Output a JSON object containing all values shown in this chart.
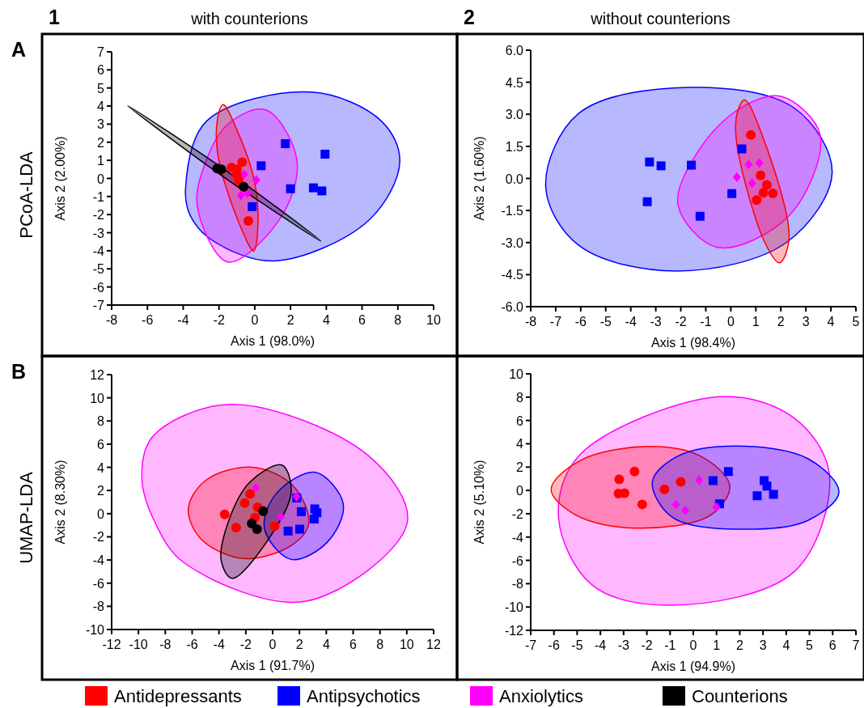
{
  "chart_data": [
    {
      "type": "scatter",
      "title": "with counterions",
      "xlabel": "Axis 1 (98.0%)",
      "ylabel": "Axis 2 (2.00%)",
      "annotations": [
        "1",
        "A",
        "PCoA-LDA"
      ],
      "xlim": [
        -8,
        10
      ],
      "xticks": [
        -8,
        -6,
        -4,
        -2,
        0,
        2,
        4,
        6,
        8,
        10
      ],
      "ylim": [
        -7,
        7
      ],
      "yticks": [
        -7,
        -6,
        -5,
        -4,
        -3,
        -2,
        -1,
        0,
        1,
        2,
        3,
        4,
        5,
        6,
        7
      ],
      "series": [
        {
          "type": "area",
          "color": "#0000ff",
          "x": [
            -3.87,
            -2.7,
            3.17,
            7.09,
            8.11,
            6.34,
            1.07,
            -2.4,
            -3.6
          ],
          "values": [
            -0.57,
            3.16,
            4.77,
            3.16,
            0.92,
            -2.35,
            -4.56,
            -3.4,
            -2.06
          ]
        },
        {
          "type": "area",
          "color": "#ff00ff",
          "x": [
            0.61,
            2.35,
            1.52,
            -1.49,
            -3.2,
            -2.85,
            -1.49
          ],
          "values": [
            3.79,
            1.07,
            -2.06,
            -4.62,
            -1.61,
            0.63,
            3.01
          ]
        },
        {
          "type": "area",
          "color": "#ff0000",
          "x": [
            -1.77,
            -1.01,
            0.01,
            0.16,
            -0.06,
            -0.74,
            -2.02,
            -2.1
          ],
          "values": [
            4.08,
            2.71,
            -0.27,
            -2.95,
            -4.02,
            -2.8,
            1.07,
            3.16
          ]
        },
        {
          "type": "area",
          "color": "#000000",
          "x": [
            -7.1,
            -4.33,
            -1.6,
            1.08,
            3.7,
            0.93,
            -1.81,
            -4.48
          ],
          "values": [
            4.02,
            2.25,
            0.43,
            -1.49,
            -3.47,
            -1.7,
            0.13,
            2.04
          ]
        },
        {
          "type": "scatter",
          "marker": "square",
          "color": "#0000ff",
          "x": [
            1.71,
            3.93,
            0.36,
            2.0,
            3.28,
            3.75,
            -0.14
          ],
          "values": [
            1.92,
            1.34,
            0.7,
            -0.57,
            -0.52,
            -0.69,
            -1.56
          ]
        },
        {
          "type": "scatter",
          "marker": "diamond",
          "color": "#ff00ff",
          "x": [
            -0.59,
            0.09,
            -0.77,
            -0.41
          ],
          "values": [
            0.22,
            -0.09,
            -0.94,
            -0.82
          ]
        },
        {
          "type": "scatter",
          "marker": "circle",
          "color": "#ff0000",
          "x": [
            -0.7,
            -1.3,
            -1.0,
            -1.0,
            -0.9,
            -0.36
          ],
          "values": [
            0.9,
            0.6,
            0.5,
            0.2,
            -0.1,
            -2.35
          ]
        },
        {
          "type": "scatter",
          "marker": "circle",
          "color": "#000000",
          "x": [
            -2.1,
            -1.87,
            -0.62
          ],
          "values": [
            0.55,
            0.5,
            -0.46
          ]
        }
      ]
    },
    {
      "type": "scatter",
      "title": "without counterions",
      "xlabel": "Axis 1 (98.4%)",
      "ylabel": "Axis 2 (1.60%)",
      "annotations": [
        "2"
      ],
      "xlim": [
        -8,
        5
      ],
      "xticks": [
        -8,
        -7,
        -6,
        -5,
        -4,
        -3,
        -2,
        -1,
        0,
        1,
        2,
        3,
        4,
        5
      ],
      "ylim": [
        -6,
        6
      ],
      "yticks": [
        {
          "value": -6,
          "label": "-6.0"
        },
        {
          "value": -4.5,
          "label": "-4.5"
        },
        {
          "value": -3,
          "label": "-3.0"
        },
        {
          "value": -1.5,
          "label": "-1.5"
        },
        {
          "value": 0,
          "label": "0.0"
        },
        {
          "value": 1.5,
          "label": "1.5"
        },
        {
          "value": 3,
          "label": "3.0"
        },
        {
          "value": 4.5,
          "label": "4.5"
        },
        {
          "value": 6,
          "label": "6.0"
        }
      ],
      "series": [
        {
          "type": "area",
          "color": "#0000ff",
          "x": [
            -7.4,
            -6.08,
            -1.66,
            2.54,
            4.05,
            2.22,
            -2.15,
            -6.08
          ],
          "values": [
            -0.36,
            3.04,
            4.26,
            3.29,
            0.27,
            -3.0,
            -4.33,
            -3.13
          ]
        },
        {
          "type": "area",
          "color": "#ff00ff",
          "x": [
            2.0,
            3.57,
            2.33,
            -0.53,
            -2.11,
            -1.23,
            0.39
          ],
          "values": [
            3.84,
            2.03,
            -1.74,
            -3.23,
            -1.24,
            1.4,
            3.29
          ]
        },
        {
          "type": "area",
          "color": "#ff0000",
          "x": [
            0.55,
            1.25,
            2.33,
            1.95,
            1.36,
            0.22,
            0.28
          ],
          "values": [
            3.67,
            2.03,
            -2.75,
            -3.95,
            -3.0,
            1.78,
            3.17
          ]
        },
        {
          "type": "scatter",
          "marker": "square",
          "color": "#0000ff",
          "x": [
            -3.25,
            -2.79,
            -1.58,
            0.44,
            -3.34,
            0.04,
            -1.23
          ],
          "values": [
            0.77,
            0.59,
            0.62,
            1.38,
            -1.09,
            -0.71,
            -1.77
          ]
        },
        {
          "type": "scatter",
          "marker": "diamond",
          "color": "#ff00ff",
          "x": [
            0.71,
            1.14,
            0.24,
            0.85
          ],
          "values": [
            0.65,
            0.72,
            0.06,
            -0.23
          ]
        },
        {
          "type": "scatter",
          "marker": "circle",
          "color": "#ff0000",
          "x": [
            0.8,
            1.19,
            1.44,
            1.3,
            1.68,
            1.03
          ],
          "values": [
            2.03,
            0.14,
            -0.3,
            -0.67,
            -0.7,
            -1.01
          ]
        }
      ]
    },
    {
      "type": "scatter",
      "xlabel": "Axis 1 (91.7%)",
      "ylabel": "Axis 2 (8.30%)",
      "annotations": [
        "B",
        "UMAP-LDA"
      ],
      "legend": "bottom",
      "xlim": [
        -12,
        12
      ],
      "xticks": [
        -12,
        -10,
        -8,
        -6,
        -4,
        -2,
        0,
        2,
        4,
        6,
        8,
        10,
        12
      ],
      "ylim": [
        -10,
        12
      ],
      "yticks": [
        -10,
        -8,
        -6,
        -4,
        -2,
        0,
        2,
        4,
        6,
        8,
        10,
        12
      ],
      "series": [
        {
          "type": "area",
          "color": "#ff00ff",
          "x": [
            -9.75,
            -8.95,
            -3.12,
            7.12,
            10.03,
            2.5,
            -6.54,
            -8.75
          ],
          "values": [
            3.15,
            6.64,
            9.43,
            5.02,
            -0.8,
            -7.56,
            -4.29,
            -0.8
          ]
        },
        {
          "type": "area",
          "color": "#ff0000",
          "x": [
            -6.28,
            -4.93,
            -1.52,
            1.49,
            2.7,
            1.49,
            -2.12,
            -5.33
          ],
          "values": [
            0.47,
            2.92,
            4.01,
            2.45,
            -0.8,
            -2.67,
            -3.88,
            -2.2
          ]
        },
        {
          "type": "area",
          "color": "#0000ff",
          "x": [
            3.2,
            5.27,
            4.1,
            1.39,
            -0.61,
            0.29
          ],
          "values": [
            3.57,
            0.82,
            -2.43,
            -3.95,
            -1.27,
            1.76
          ]
        },
        {
          "type": "area",
          "color": "#000000",
          "x": [
            0.69,
            1.39,
            0.2,
            -3.02,
            -3.83,
            -3.33,
            -1.72
          ],
          "values": [
            4.2,
            1.97,
            -1.3,
            -5.58,
            -4.08,
            -0.8,
            2.69
          ]
        },
        {
          "name": "Antidepressants",
          "type": "scatter",
          "marker": "circle",
          "color": "#ff0000",
          "x": [
            -3.57,
            -2.08,
            -1.68,
            -2.72,
            -1.12,
            -1.32,
            0.15
          ],
          "values": [
            -0.06,
            0.92,
            1.69,
            -1.2,
            0.54,
            -0.34,
            -1.08
          ]
        },
        {
          "name": "Antipsychotics",
          "type": "scatter",
          "marker": "square",
          "color": "#0000ff",
          "x": [
            1.8,
            2.14,
            3.14,
            3.1,
            3.3,
            2.02,
            1.15
          ],
          "values": [
            1.36,
            0.17,
            0.41,
            -0.46,
            0.08,
            -1.34,
            -1.5
          ]
        },
        {
          "name": "Anxiolytics",
          "type": "scatter",
          "marker": "diamond",
          "color": "#ff00ff",
          "x": [
            -1.26,
            1.78,
            0.61
          ],
          "values": [
            2.22,
            1.48,
            -0.27
          ]
        },
        {
          "name": "Counterions",
          "type": "scatter",
          "marker": "circle",
          "color": "#000000",
          "x": [
            -0.71,
            -1.56,
            -1.16
          ],
          "values": [
            0.22,
            -0.85,
            -1.34
          ]
        }
      ]
    },
    {
      "type": "scatter",
      "xlabel": "Axis 1 (94.9%)",
      "ylabel": "Axis 2 (5.10%)",
      "xlim": [
        -7,
        7
      ],
      "xticks": [
        -7,
        -6,
        -5,
        -4,
        -3,
        -2,
        -1,
        0,
        1,
        2,
        3,
        4,
        5,
        6,
        7
      ],
      "ylim": [
        -12,
        10
      ],
      "yticks": [
        -12,
        -10,
        -8,
        -6,
        -4,
        -2,
        0,
        2,
        4,
        6,
        8,
        10
      ],
      "series": [
        {
          "type": "area",
          "color": "#ff00ff",
          "x": [
            1.1,
            4.35,
            5.86,
            4.35,
            -0.99,
            -4.35,
            -5.8,
            -4.93
          ],
          "values": [
            8.04,
            6.19,
            1.34,
            -6.96,
            -9.85,
            -8.12,
            -2.35,
            2.96
          ]
        },
        {
          "type": "area",
          "color": "#ff0000",
          "x": [
            -6.12,
            -4.93,
            -2.03,
            0.29,
            1.57,
            0.75,
            -2.5,
            -5.05
          ],
          "values": [
            0.07,
            2.5,
            3.77,
            2.96,
            0.42,
            -2.12,
            -3.23,
            -2.12
          ]
        },
        {
          "type": "area",
          "color": "#0000ff",
          "x": [
            -1.76,
            -0.64,
            1.8,
            4.93,
            6.27,
            4.93,
            2.67,
            -0.87
          ],
          "values": [
            0.77,
            2.96,
            3.81,
            2.73,
            -0.16,
            -2.58,
            -3.32,
            -2.35
          ]
        },
        {
          "type": "scatter",
          "marker": "circle",
          "color": "#ff0000",
          "x": [
            -3.19,
            -2.53,
            -3.22,
            -2.96,
            -2.2,
            -1.24,
            -0.54
          ],
          "values": [
            0.95,
            1.62,
            -0.27,
            -0.23,
            -1.2,
            0.1,
            0.74
          ]
        },
        {
          "type": "scatter",
          "marker": "square",
          "color": "#0000ff",
          "x": [
            0.85,
            1.51,
            1.13,
            3.05,
            3.17,
            2.75,
            3.45
          ],
          "values": [
            0.84,
            1.62,
            -1.15,
            0.84,
            0.37,
            -0.46,
            -0.34
          ]
        },
        {
          "type": "scatter",
          "marker": "diamond",
          "color": "#ff00ff",
          "x": [
            0.25,
            -0.75,
            -0.35,
            1.0
          ],
          "values": [
            0.88,
            -1.2,
            -1.71,
            -1.43
          ]
        }
      ]
    }
  ]
}
